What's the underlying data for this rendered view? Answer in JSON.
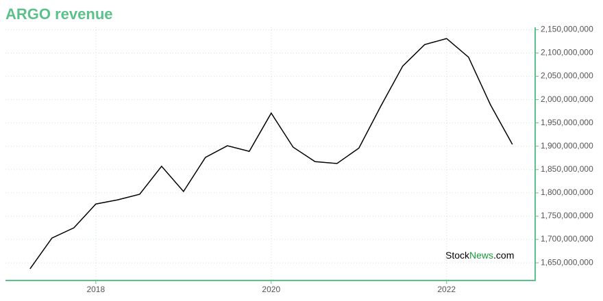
{
  "chart_data": {
    "type": "line",
    "title": "ARGO revenue",
    "x": [
      2017.25,
      2017.5,
      2017.75,
      2018,
      2018.25,
      2018.5,
      2018.75,
      2019,
      2019.25,
      2019.5,
      2019.75,
      2020,
      2020.25,
      2020.5,
      2020.75,
      2021,
      2021.25,
      2021.5,
      2021.75,
      2022,
      2022.25,
      2022.5,
      2022.75
    ],
    "series": [
      {
        "name": "ARGO revenue",
        "color": "#000000",
        "values": [
          1637000000,
          1703000000,
          1725000000,
          1776000000,
          1785000000,
          1797000000,
          1857000000,
          1803000000,
          1876000000,
          1901000000,
          1889000000,
          1971000000,
          1898000000,
          1867000000,
          1863000000,
          1896000000,
          1986000000,
          2072000000,
          2118000000,
          2131000000,
          2091000000,
          1989000000,
          1904000000
        ]
      }
    ],
    "xlim": [
      2016.97,
      2023.01
    ],
    "xticks": [
      2018,
      2020,
      2022
    ],
    "ylim": [
      1612000000,
      2155000000
    ],
    "yticks": [
      {
        "value": 1650000000,
        "label": "1,650,000,000"
      },
      {
        "value": 1700000000,
        "label": "1,700,000,000"
      },
      {
        "value": 1750000000,
        "label": "1,750,000,000"
      },
      {
        "value": 1800000000,
        "label": "1,800,000,000"
      },
      {
        "value": 1850000000,
        "label": "1,850,000,000"
      },
      {
        "value": 1900000000,
        "label": "1,900,000,000"
      },
      {
        "value": 1950000000,
        "label": "1,950,000,000"
      },
      {
        "value": 2000000000,
        "label": "2,000,000,000"
      },
      {
        "value": 2050000000,
        "label": "2,050,000,000"
      },
      {
        "value": 2100000000,
        "label": "2,100,000,000"
      },
      {
        "value": 2150000000,
        "label": "2,150,000,000"
      }
    ],
    "grid": true,
    "axis_color": "#5cc08a",
    "watermark": [
      "Stock",
      "News",
      ".com"
    ]
  }
}
